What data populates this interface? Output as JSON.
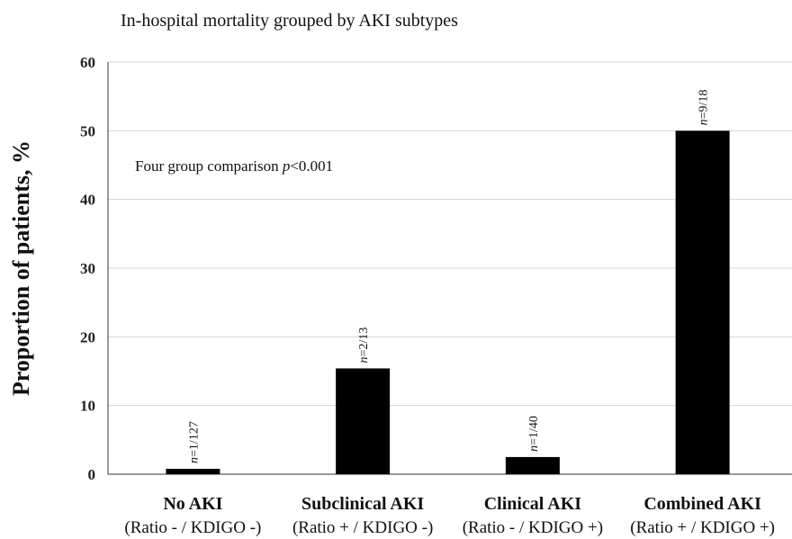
{
  "chart_data": {
    "type": "bar",
    "title": "In-hospital mortality grouped by AKI subtypes",
    "ylabel": "Proportion of patients, %",
    "xlabel": "",
    "ylim": [
      0,
      60
    ],
    "yticks": [
      0,
      10,
      20,
      30,
      40,
      50,
      60
    ],
    "grid": true,
    "categories": [
      {
        "name": "No AKI",
        "sub": "(Ratio - / KDIGO -)"
      },
      {
        "name": "Subclinical AKI",
        "sub": "(Ratio + / KDIGO -)"
      },
      {
        "name": "Clinical AKI",
        "sub": "(Ratio - / KDIGO +)"
      },
      {
        "name": "Combined AKI",
        "sub": "(Ratio + / KDIGO +)"
      }
    ],
    "values": [
      0.79,
      15.4,
      2.5,
      50.0
    ],
    "data_labels": [
      "n=1/127",
      "n=2/13",
      "n=1/40",
      "n=9/18"
    ],
    "bar_color": "#000000",
    "annotation": {
      "prefix": "Four group comparison ",
      "italic": "p",
      "suffix": "<0.001"
    }
  }
}
